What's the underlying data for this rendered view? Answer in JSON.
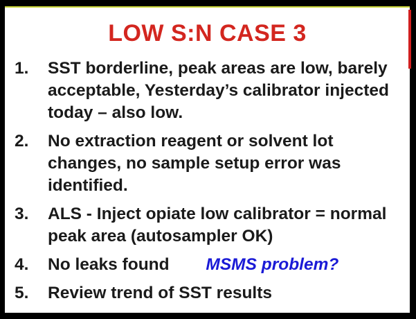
{
  "slide": {
    "title": "LOW S:N CASE 3",
    "items": [
      {
        "number": "1.",
        "text": "SST borderline, peak areas are low, barely acceptable,  Yesterday’s calibrator injected today – also low."
      },
      {
        "number": "2.",
        "text": "No extraction reagent or solvent lot changes, no sample setup error was identified."
      },
      {
        "number": "3.",
        "text": "ALS - Inject opiate low calibrator = normal peak area (autosampler OK)"
      },
      {
        "number": "4.",
        "text": "No leaks found",
        "callout": "MSMS problem?"
      },
      {
        "number": "5.",
        "text": "Review trend of SST results"
      }
    ]
  },
  "colors": {
    "title": "#d3261f",
    "callout": "#1a1ad6",
    "body_text": "#1a1a1a",
    "background": "#ffffff",
    "frame": "#000000",
    "accent_top": "#c9d43a",
    "accent_side": "#d11f1f"
  }
}
